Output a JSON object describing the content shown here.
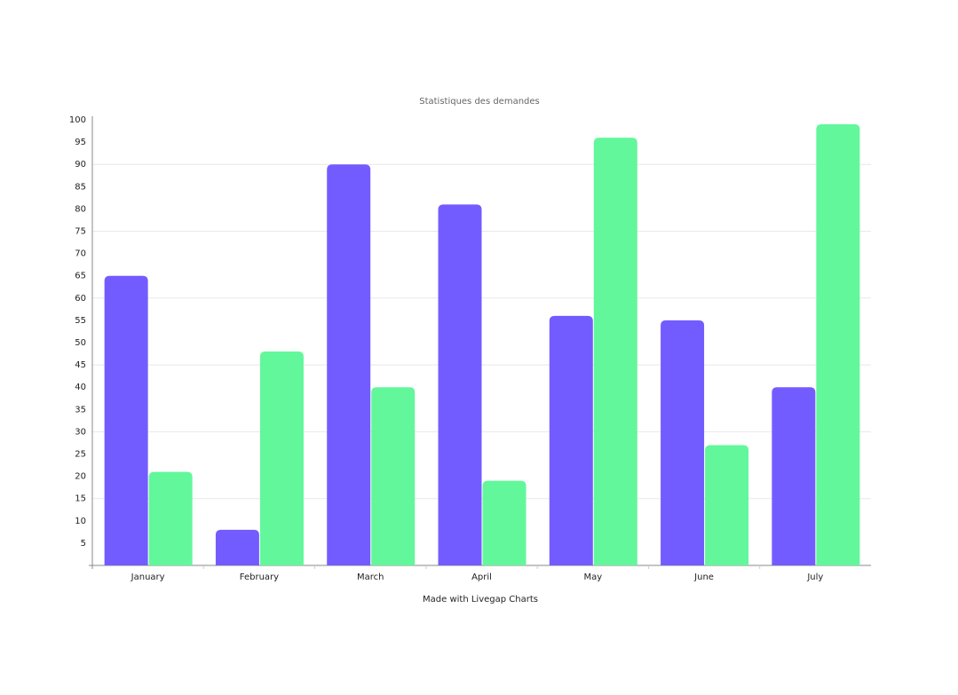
{
  "chart_data": {
    "type": "bar",
    "title": "Statistiques des demandes",
    "x_label": "Made with Livegap Charts",
    "categories": [
      "January",
      "February",
      "March",
      "April",
      "May",
      "June",
      "July"
    ],
    "series": [
      {
        "color": "#735cff",
        "values": [
          65,
          8,
          90,
          81,
          56,
          55,
          40
        ]
      },
      {
        "color": "#62f79b",
        "values": [
          21,
          48,
          40,
          19,
          96,
          27,
          99
        ]
      }
    ],
    "ylim": [
      0,
      100
    ],
    "yticks": [
      5,
      10,
      15,
      20,
      25,
      30,
      35,
      40,
      45,
      50,
      55,
      60,
      65,
      70,
      75,
      80,
      85,
      90,
      95,
      100
    ],
    "grid": true
  }
}
